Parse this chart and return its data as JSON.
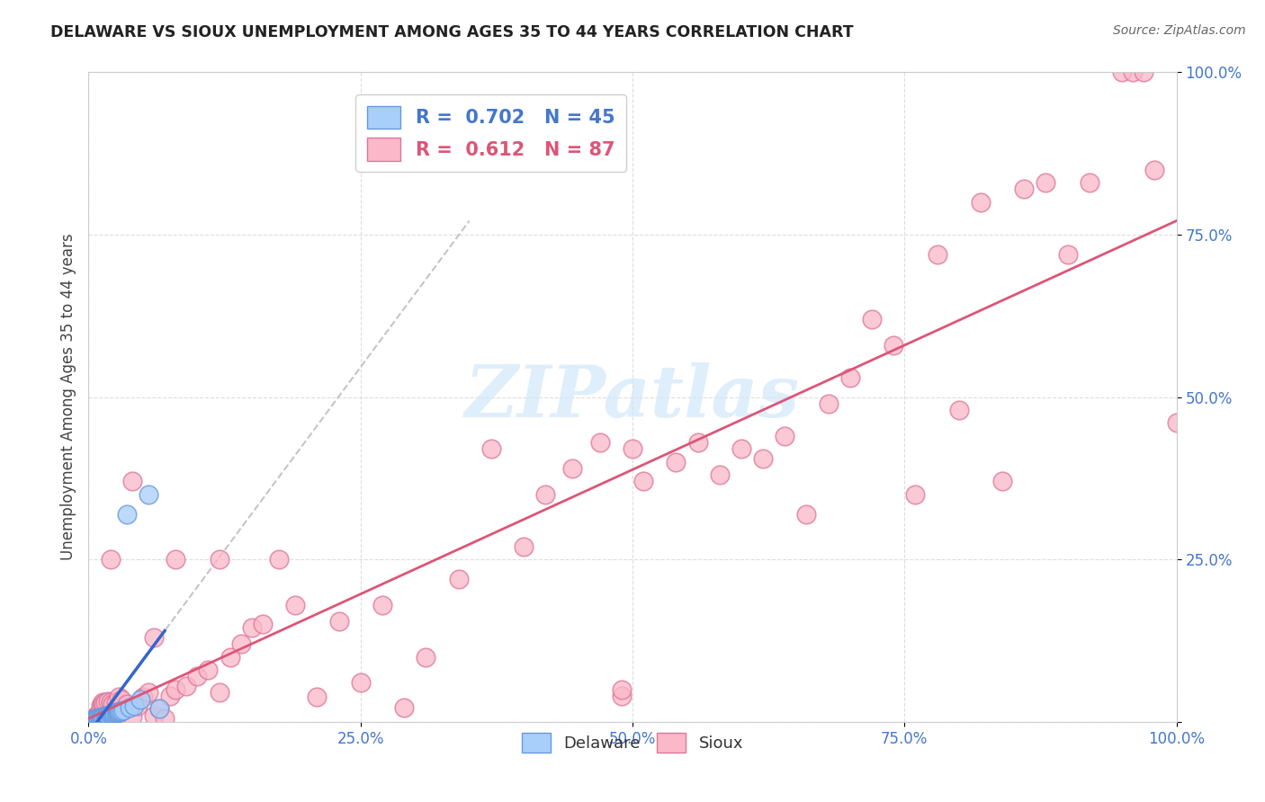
{
  "title": "DELAWARE VS SIOUX UNEMPLOYMENT AMONG AGES 35 TO 44 YEARS CORRELATION CHART",
  "source": "Source: ZipAtlas.com",
  "ylabel": "Unemployment Among Ages 35 to 44 years",
  "xlim": [
    0,
    1
  ],
  "ylim": [
    0,
    1
  ],
  "delaware_R": 0.702,
  "delaware_N": 45,
  "sioux_R": 0.612,
  "sioux_N": 87,
  "delaware_color": "#A8CEFA",
  "delaware_edge_color": "#6699DD",
  "sioux_color": "#FAB8C8",
  "sioux_edge_color": "#DD7799",
  "delaware_line_color": "#3366CC",
  "sioux_line_color": "#DD5577",
  "dash_color": "#BBBBBB",
  "watermark_color": "#D0E8F8",
  "tick_color": "#4477CC",
  "ylabel_color": "#444444",
  "title_color": "#222222",
  "source_color": "#666666",
  "grid_color": "#DDDDDD",
  "background_color": "#FFFFFF",
  "legend_del_color": "#4477CC",
  "legend_sioux_color": "#DD5577",
  "del_x": [
    0.001,
    0.002,
    0.003,
    0.003,
    0.004,
    0.004,
    0.005,
    0.005,
    0.006,
    0.006,
    0.007,
    0.007,
    0.008,
    0.008,
    0.009,
    0.009,
    0.01,
    0.01,
    0.011,
    0.012,
    0.013,
    0.014,
    0.015,
    0.016,
    0.017,
    0.018,
    0.019,
    0.02,
    0.021,
    0.022,
    0.023,
    0.024,
    0.025,
    0.026,
    0.027,
    0.028,
    0.029,
    0.03,
    0.032,
    0.035,
    0.038,
    0.042,
    0.048,
    0.055,
    0.065
  ],
  "del_y": [
    0.001,
    0.002,
    0.001,
    0.003,
    0.002,
    0.003,
    0.003,
    0.004,
    0.003,
    0.004,
    0.004,
    0.005,
    0.004,
    0.005,
    0.005,
    0.006,
    0.005,
    0.006,
    0.006,
    0.007,
    0.007,
    0.008,
    0.008,
    0.009,
    0.009,
    0.01,
    0.01,
    0.011,
    0.011,
    0.012,
    0.012,
    0.013,
    0.013,
    0.014,
    0.015,
    0.015,
    0.016,
    0.017,
    0.018,
    0.32,
    0.022,
    0.025,
    0.035,
    0.35,
    0.02
  ],
  "sioux_x": [
    0.001,
    0.002,
    0.003,
    0.004,
    0.005,
    0.006,
    0.007,
    0.008,
    0.009,
    0.01,
    0.011,
    0.012,
    0.013,
    0.014,
    0.015,
    0.018,
    0.02,
    0.022,
    0.025,
    0.028,
    0.03,
    0.035,
    0.04,
    0.045,
    0.05,
    0.055,
    0.06,
    0.065,
    0.07,
    0.075,
    0.08,
    0.09,
    0.1,
    0.11,
    0.12,
    0.13,
    0.14,
    0.15,
    0.16,
    0.175,
    0.19,
    0.21,
    0.23,
    0.25,
    0.27,
    0.29,
    0.31,
    0.34,
    0.37,
    0.4,
    0.42,
    0.445,
    0.47,
    0.49,
    0.51,
    0.54,
    0.56,
    0.58,
    0.6,
    0.62,
    0.64,
    0.66,
    0.68,
    0.7,
    0.72,
    0.74,
    0.76,
    0.78,
    0.8,
    0.82,
    0.84,
    0.86,
    0.88,
    0.9,
    0.92,
    0.95,
    0.96,
    0.97,
    0.98,
    1.0,
    0.02,
    0.04,
    0.06,
    0.08,
    0.12,
    0.5,
    0.49
  ],
  "sioux_y": [
    0.002,
    0.003,
    0.004,
    0.005,
    0.006,
    0.007,
    0.008,
    0.01,
    0.012,
    0.015,
    0.025,
    0.028,
    0.03,
    0.028,
    0.03,
    0.032,
    0.03,
    0.028,
    0.03,
    0.038,
    0.035,
    0.027,
    0.008,
    0.025,
    0.038,
    0.045,
    0.01,
    0.02,
    0.005,
    0.04,
    0.05,
    0.055,
    0.07,
    0.08,
    0.045,
    0.1,
    0.12,
    0.145,
    0.15,
    0.25,
    0.18,
    0.038,
    0.155,
    0.06,
    0.18,
    0.022,
    0.1,
    0.22,
    0.42,
    0.27,
    0.35,
    0.39,
    0.43,
    0.04,
    0.37,
    0.4,
    0.43,
    0.38,
    0.42,
    0.405,
    0.44,
    0.32,
    0.49,
    0.53,
    0.62,
    0.58,
    0.35,
    0.72,
    0.48,
    0.8,
    0.37,
    0.82,
    0.83,
    0.72,
    0.83,
    1.0,
    1.0,
    1.0,
    0.85,
    0.46,
    0.25,
    0.37,
    0.13,
    0.25,
    0.25,
    0.42,
    0.05
  ]
}
